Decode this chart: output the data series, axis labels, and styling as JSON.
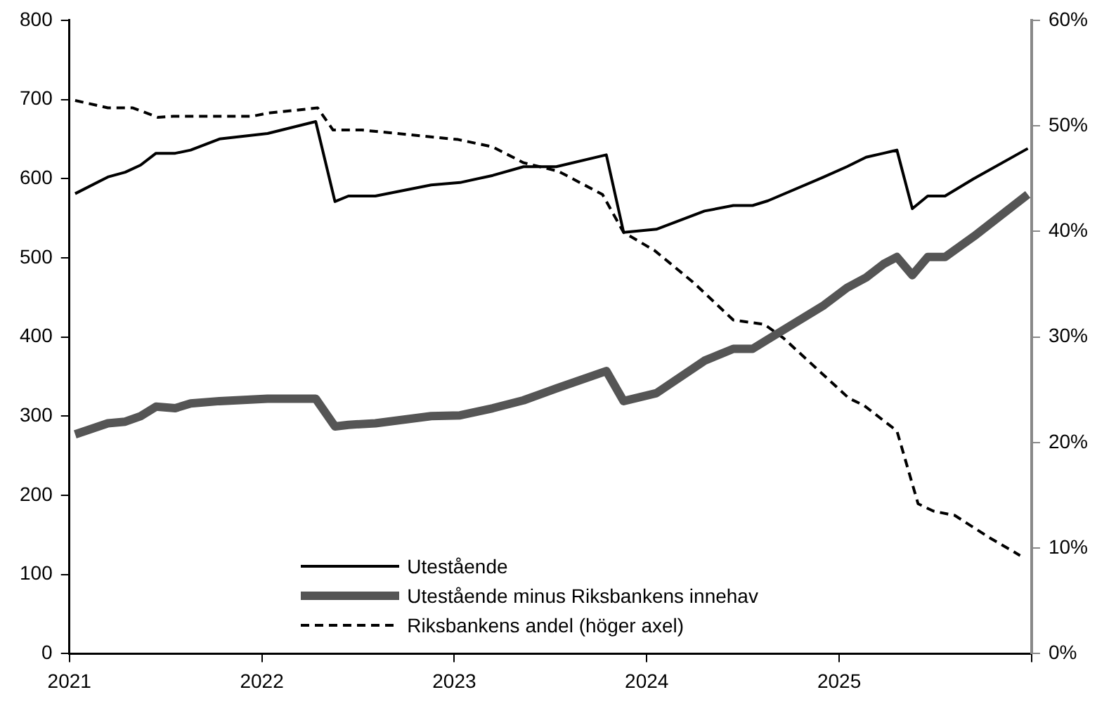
{
  "chart_data": {
    "type": "line",
    "legend": "bottom",
    "grid": false,
    "marker": "none",
    "xlim": [
      2021,
      2026
    ],
    "xticks": [
      2021,
      2022,
      2023,
      2024,
      2025,
      {
        "value": 2026,
        "label": null
      }
    ],
    "ylim": [
      0,
      800
    ],
    "yticks": [
      0,
      100,
      200,
      300,
      400,
      500,
      600,
      700,
      800
    ],
    "y2lim": [
      0,
      60
    ],
    "y2ticks": [
      {
        "value": 0,
        "label": "0%"
      },
      {
        "value": 10,
        "label": "10%"
      },
      {
        "value": 20,
        "label": "20%"
      },
      {
        "value": 30,
        "label": "30%"
      },
      {
        "value": 40,
        "label": "40%"
      },
      {
        "value": 50,
        "label": "50%"
      },
      {
        "value": 60,
        "label": "60%"
      }
    ],
    "x": [
      2021.03,
      2021.2,
      2021.29,
      2021.37,
      2021.45,
      2021.55,
      2021.63,
      2021.78,
      2022.03,
      2022.28,
      2022.38,
      2022.45,
      2022.59,
      2022.88,
      2023.03,
      2023.2,
      2023.36,
      2023.53,
      2023.79,
      2023.88,
      2024.05,
      2024.3,
      2024.45,
      2024.55,
      2024.63,
      2024.92,
      2025.04,
      2025.14,
      2025.23,
      2025.3,
      2025.38,
      2025.46,
      2025.55,
      2025.7,
      2025.98
    ],
    "series": [
      {
        "name": "Utestående",
        "color": "#000000",
        "line_style": "solid",
        "values": [
          581,
          602,
          608,
          617,
          632,
          632,
          636,
          650,
          657,
          672,
          571,
          578,
          578,
          592,
          595,
          604,
          615,
          615,
          630,
          532,
          536,
          559,
          566,
          566,
          572,
          602,
          615,
          627,
          632,
          636,
          562,
          578,
          578,
          600,
          638
        ]
      },
      {
        "name": "Utestående minus Riksbankens innehav",
        "color": "#555555",
        "line_style": "solid",
        "values": [
          277,
          291,
          293,
          300,
          312,
          310,
          316,
          319,
          322,
          322,
          287,
          289,
          291,
          300,
          301,
          310,
          320,
          335,
          357,
          319,
          329,
          370,
          385,
          385,
          397,
          440,
          462,
          475,
          492,
          501,
          478,
          501,
          501,
          527,
          580
        ]
      },
      {
        "name": "Riksbankens andel (höger axel)",
        "color": "#000000",
        "line_style": "dashed",
        "axis": "y2",
        "x": [
          2021.03,
          2021.2,
          2021.33,
          2021.46,
          2021.54,
          2021.95,
          2022.03,
          2022.24,
          2022.29,
          2022.37,
          2022.52,
          2023.02,
          2023.2,
          2023.36,
          2023.54,
          2023.77,
          2023.88,
          2024.04,
          2024.24,
          2024.45,
          2024.61,
          2024.71,
          2025.05,
          2025.13,
          2025.3,
          2025.41,
          2025.49,
          2025.6,
          2025.78,
          2025.94
        ],
        "values": [
          52.4,
          51.7,
          51.7,
          50.8,
          50.9,
          50.9,
          51.2,
          51.6,
          51.7,
          49.6,
          49.6,
          48.7,
          48.0,
          46.5,
          45.7,
          43.5,
          39.9,
          38.2,
          35.2,
          31.6,
          31.2,
          29.9,
          24.2,
          23.5,
          21.1,
          14.2,
          13.5,
          13.1,
          11.0,
          9.3
        ]
      }
    ]
  }
}
